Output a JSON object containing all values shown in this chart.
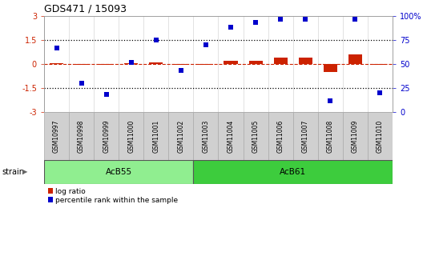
{
  "title": "GDS471 / 15093",
  "samples": [
    "GSM10997",
    "GSM10998",
    "GSM10999",
    "GSM11000",
    "GSM11001",
    "GSM11002",
    "GSM11003",
    "GSM11004",
    "GSM11005",
    "GSM11006",
    "GSM11007",
    "GSM11008",
    "GSM11009",
    "GSM11010"
  ],
  "log_ratio": [
    0.03,
    -0.04,
    -0.07,
    0.06,
    0.08,
    -0.04,
    -0.04,
    0.18,
    0.22,
    0.38,
    0.38,
    -0.48,
    0.6,
    -0.07
  ],
  "percentile_rank": [
    67,
    30,
    18,
    52,
    75,
    43,
    70,
    88,
    93,
    97,
    97,
    12,
    97,
    20
  ],
  "groups": [
    {
      "label": "AcB55",
      "start": 0,
      "end": 5,
      "color": "#90ee90"
    },
    {
      "label": "AcB61",
      "start": 6,
      "end": 13,
      "color": "#3dcc3d"
    }
  ],
  "ylim_left": [
    -3,
    3
  ],
  "ylim_right": [
    0,
    100
  ],
  "bar_width": 0.55,
  "log_ratio_color": "#cc2200",
  "percentile_color": "#0000cc",
  "bg_color": "#ffffff",
  "label_strain": "strain",
  "legend_log": "log ratio",
  "legend_pct": "percentile rank within the sample",
  "dotted_line_color": "#000000",
  "red_dashed_color": "#cc2200",
  "sample_box_color": "#d0d0d0",
  "sample_box_edge": "#aaaaaa"
}
